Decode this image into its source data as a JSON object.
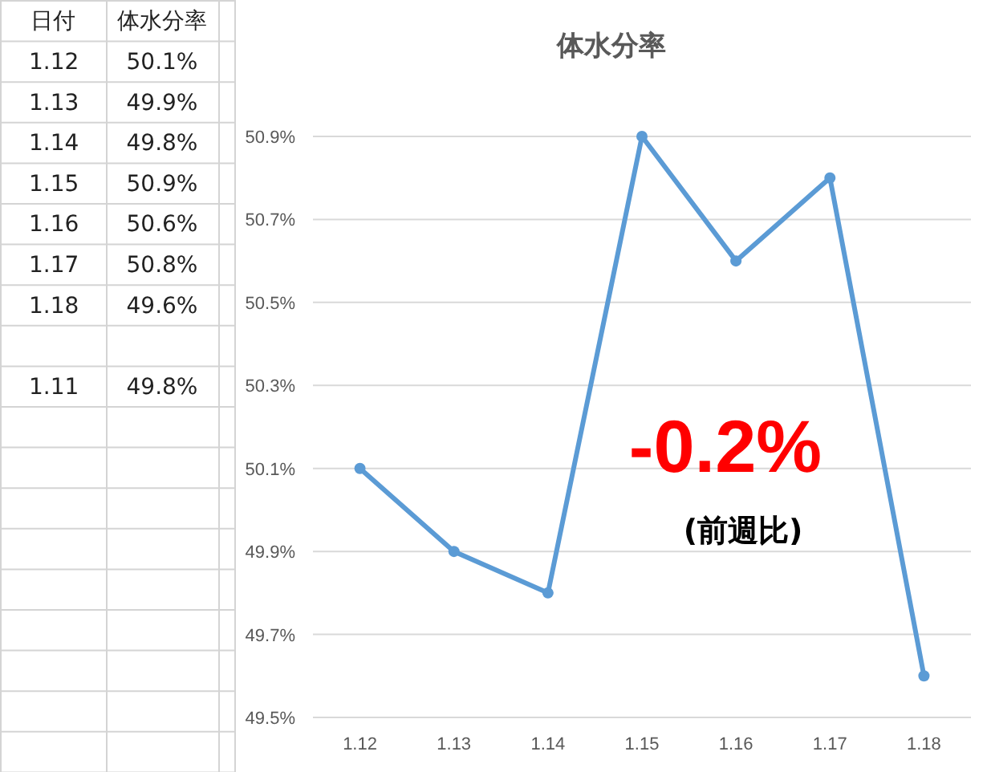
{
  "chart_data": {
    "type": "line",
    "title": "体水分率",
    "categories": [
      "1.12",
      "1.13",
      "1.14",
      "1.15",
      "1.16",
      "1.17",
      "1.18"
    ],
    "series": [
      {
        "color": "#5b9bd5",
        "values": [
          50.1,
          49.9,
          49.8,
          50.9,
          50.6,
          50.8,
          49.6
        ]
      }
    ],
    "ylim": [
      49.5,
      50.9
    ],
    "yticks": [
      {
        "value": 49.5,
        "label": "49.5%"
      },
      {
        "value": 49.7,
        "label": "49.7%"
      },
      {
        "value": 49.9,
        "label": "49.9%"
      },
      {
        "value": 50.1,
        "label": "50.1%"
      },
      {
        "value": 50.3,
        "label": "50.3%"
      },
      {
        "value": 50.5,
        "label": "50.5%"
      },
      {
        "value": 50.7,
        "label": "50.7%"
      },
      {
        "value": 50.9,
        "label": "50.9%"
      }
    ],
    "grid": "y",
    "marker": "circle",
    "line_style": "solid",
    "annotations": [
      "-0.2%",
      "(前週比)",
      "日付",
      "体水分率",
      "1.12",
      "50.1%",
      "1.13",
      "49.9%",
      "1.14",
      "49.8%",
      "1.15",
      "50.9%",
      "1.16",
      "50.6%",
      "1.17",
      "50.8%",
      "1.18",
      "49.6%",
      "1.11",
      "49.8%"
    ]
  }
}
